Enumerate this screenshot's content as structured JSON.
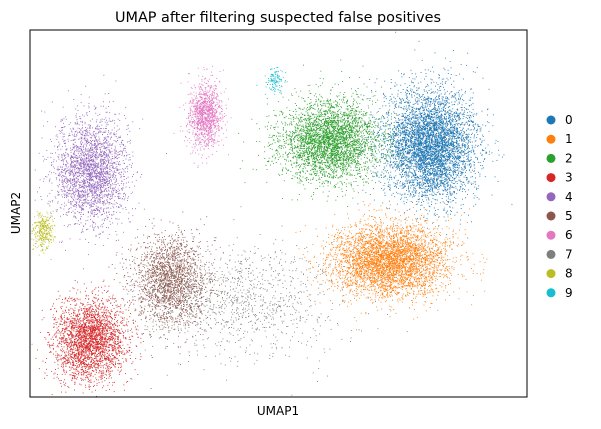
{
  "chart_data": {
    "type": "scatter",
    "title": "UMAP after filtering suspected false positives",
    "xlabel": "UMAP1",
    "ylabel": "UMAP2",
    "grid": false,
    "ticks": false,
    "legend_position": "right",
    "clusters": [
      {
        "name": "0",
        "color": "#1f77b4",
        "center": [
          400,
          115
        ],
        "spread": [
          50,
          60
        ],
        "count": 5200
      },
      {
        "name": "1",
        "color": "#ff7f0e",
        "center": [
          360,
          230
        ],
        "spread": [
          65,
          40
        ],
        "count": 4300
      },
      {
        "name": "2",
        "color": "#2ca02c",
        "center": [
          300,
          110
        ],
        "spread": [
          55,
          45
        ],
        "count": 3700
      },
      {
        "name": "3",
        "color": "#d62728",
        "center": [
          60,
          310
        ],
        "spread": [
          40,
          45
        ],
        "count": 2800
      },
      {
        "name": "4",
        "color": "#9467bd",
        "center": [
          60,
          140
        ],
        "spread": [
          40,
          60
        ],
        "count": 2600
      },
      {
        "name": "5",
        "color": "#8c564b",
        "center": [
          140,
          250
        ],
        "spread": [
          40,
          50
        ],
        "count": 2000
      },
      {
        "name": "6",
        "color": "#e377c2",
        "center": [
          175,
          85
        ],
        "spread": [
          18,
          35
        ],
        "count": 1200
      },
      {
        "name": "7",
        "color": "#7f7f7f",
        "center": [
          200,
          270
        ],
        "spread": [
          120,
          60
        ],
        "count": 1200
      },
      {
        "name": "8",
        "color": "#bcbd22",
        "center": [
          13,
          200
        ],
        "spread": [
          12,
          20
        ],
        "count": 320
      },
      {
        "name": "9",
        "color": "#17becf",
        "center": [
          245,
          50
        ],
        "spread": [
          10,
          15
        ],
        "count": 120
      }
    ]
  }
}
